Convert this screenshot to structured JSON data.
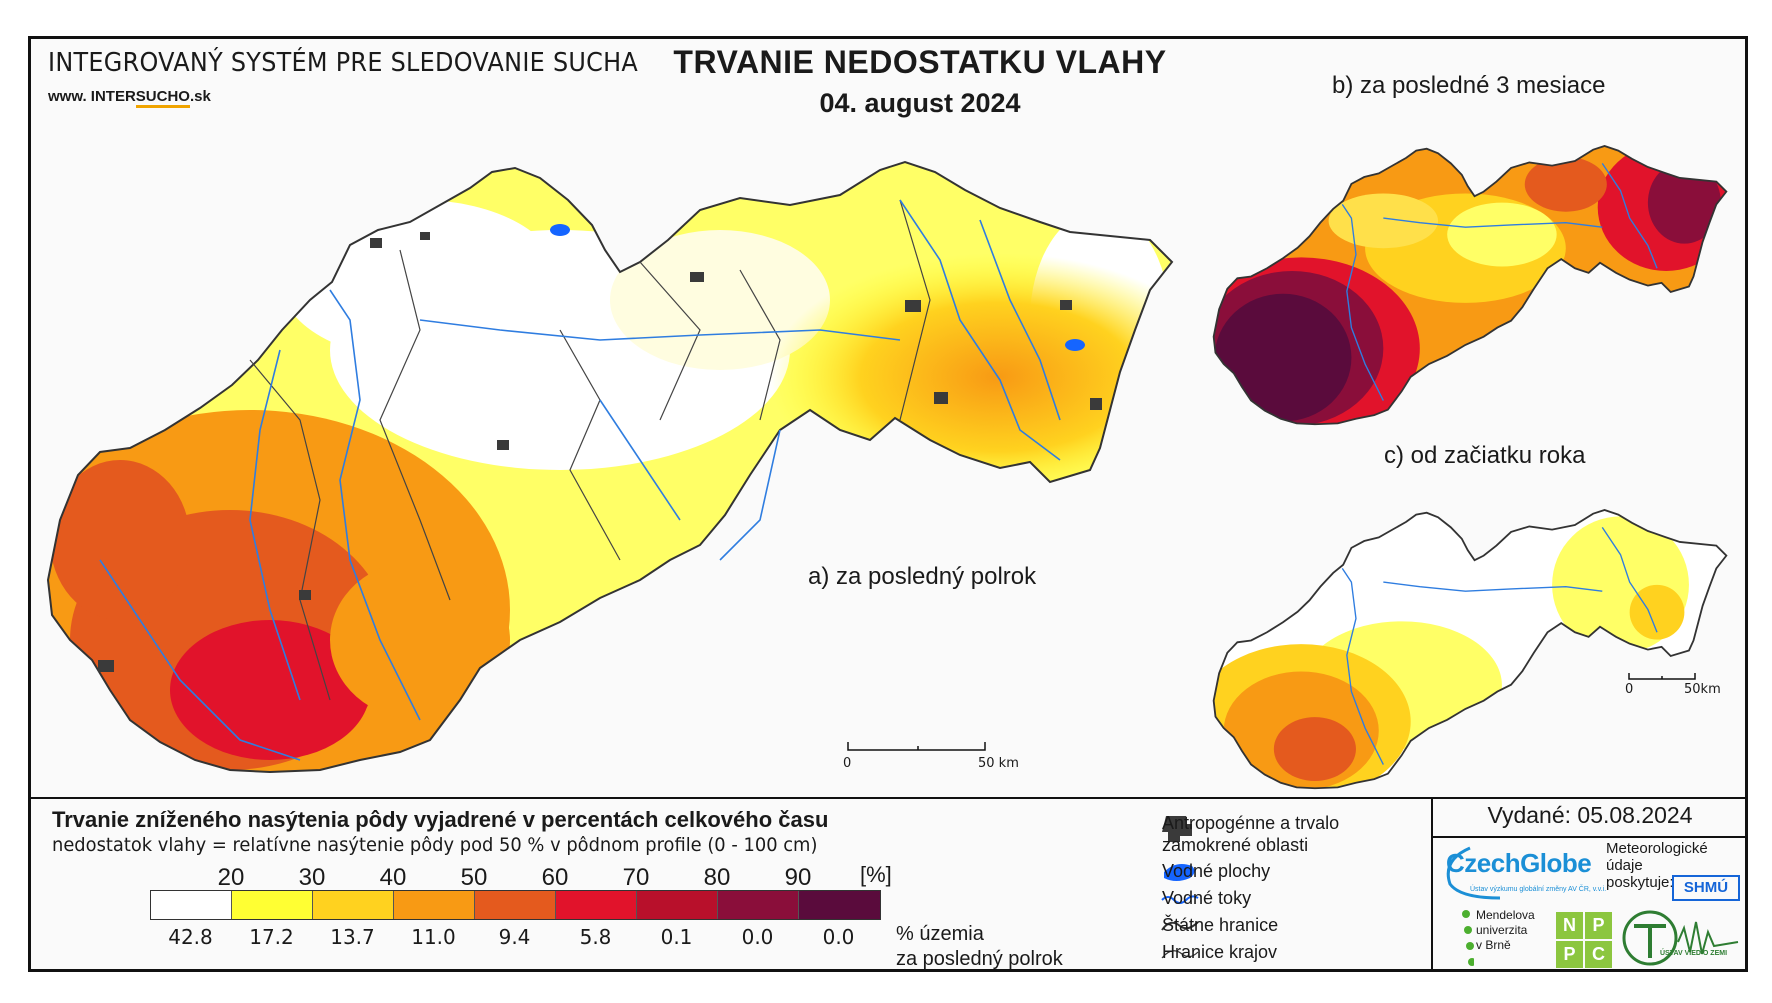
{
  "header": {
    "system_title": "INTEGROVANÝ SYSTÉM PRE SLEDOVANIE SUCHA",
    "url_prefix": "www. ",
    "url_mid": "INTER",
    "url_und": "SUCHO",
    "url_suffix": ".sk",
    "main_title": "TRVANIE NEDOSTATKU VLAHY",
    "date": "04. august 2024"
  },
  "maps": {
    "a_label": "a) za posledný polrok",
    "b_label": "b) za posledné 3 mesiace",
    "c_label": "c) od začiatku roka",
    "scale_zero": "0",
    "scale_main": "50 km",
    "scale_small": "50km"
  },
  "legend": {
    "title": "Trvanie zníženého nasýtenia pôdy vyjadrené v percentách celkového času",
    "subtitle": "nedostatok vlahy = relatívne nasýtenie pôdy pod 50 % v pôdnom profile (0 - 100 cm)",
    "ticks": [
      "20",
      "30",
      "40",
      "50",
      "60",
      "70",
      "80",
      "90"
    ],
    "unit": "[%]",
    "colors": [
      "#ffffff",
      "#ffff33",
      "#ffd21f",
      "#f89a14",
      "#e45a1e",
      "#e1132b",
      "#b8102b",
      "#8a0e3a",
      "#5a0b3c"
    ],
    "percentages": [
      "42.8",
      "17.2",
      "13.7",
      "11.0",
      "9.4",
      "5.8",
      "0.1",
      "0.0",
      "0.0"
    ],
    "pct_label_1": "% územia",
    "pct_label_2": "za posledný polrok",
    "symbols": {
      "anthropogenic_1": "Antropogénne a trvalo",
      "anthropogenic_2": "zamokrené oblasti",
      "water_bodies": "Vodné plochy",
      "rivers": "Vodné toky",
      "state_border": "Štátne hranice",
      "region_border": "Hranice krajov"
    }
  },
  "footer": {
    "issued": "Vydané: 05.08.2024",
    "czechglobe": "CzechGlobe",
    "czechglobe_sub": "Ústav výzkumu globální změny AV ČR, v.v.i.",
    "meteo_1": "Meteorologické",
    "meteo_2": "údaje",
    "meteo_3": "poskytuje:",
    "shmu": "SHMÚ",
    "mendel_1": "Mendelova",
    "mendel_2": "univerzita",
    "mendel_3": "v Brně",
    "nppc": [
      "N",
      "P",
      "P",
      "C"
    ],
    "uvz": "ÚSTAV VIED O ZEMI"
  }
}
